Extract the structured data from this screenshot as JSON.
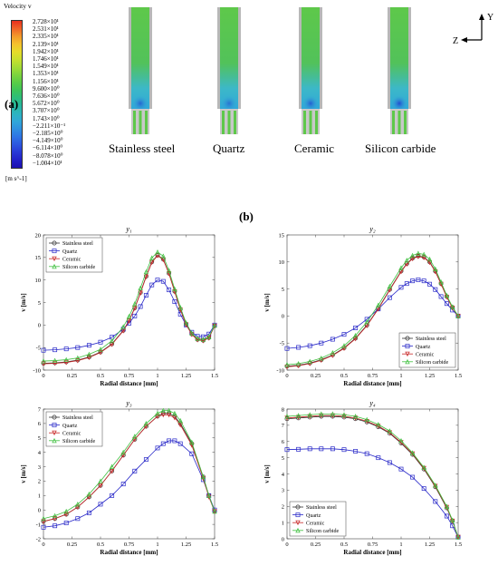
{
  "panel_a": {
    "label": "(a)",
    "legend_title": "Velocity v",
    "unit": "[m s^-1]",
    "colorbar_ticks": [
      "2.728×10¹",
      "2.531×10¹",
      "2.335×10¹",
      "2.139×10¹",
      "1.942×10¹",
      "1.746×10¹",
      "1.549×10¹",
      "1.353×10¹",
      "1.156×10¹",
      "9.600×10⁰",
      "7.636×10⁰",
      "5.672×10⁰",
      "3.707×10⁰",
      "1.743×10⁰",
      "−2.211×10⁻¹",
      "−2.185×10⁰",
      "−4.149×10⁰",
      "−6.114×10⁰",
      "−8.078×10⁰",
      "−1.004×10¹"
    ],
    "colorbar_colors": [
      "#e8301e",
      "#f06428",
      "#f39a2a",
      "#f5c12c",
      "#e6dc2a",
      "#c8e02e",
      "#a3dc36",
      "#7cd43e",
      "#58cc46",
      "#3cc45a",
      "#2cbd7c",
      "#28b8a0",
      "#2cb4c0",
      "#30a8d8",
      "#2f8fe0",
      "#2e74e4",
      "#2c56e0",
      "#2838d6",
      "#2220c8",
      "#1c10b0"
    ],
    "materials": [
      "Stainless steel",
      "Quartz",
      "Ceramic",
      "Silicon carbide"
    ],
    "axis_y": "Y",
    "axis_z": "Z"
  },
  "panel_b": {
    "label": "(b)"
  },
  "colors": {
    "Stainless steel": "#333333",
    "Quartz": "#2828c8",
    "Ceramic": "#c82828",
    "Silicon carbide": "#40c040"
  },
  "chart_data": [
    {
      "type": "line",
      "title": "y₁",
      "xlabel": "Radial distance [mm]",
      "ylabel": "v [m/s]",
      "xlim": [
        0,
        1.5
      ],
      "ylim": [
        -10,
        20
      ],
      "xticks": [
        0,
        0.25,
        0.5,
        0.75,
        1,
        1.25,
        1.5
      ],
      "yticks": [
        -10,
        -5,
        0,
        5,
        10,
        15,
        20
      ],
      "legend": "top-left",
      "x": [
        0,
        0.1,
        0.2,
        0.3,
        0.4,
        0.5,
        0.6,
        0.7,
        0.75,
        0.8,
        0.85,
        0.9,
        0.95,
        1.0,
        1.05,
        1.1,
        1.15,
        1.2,
        1.25,
        1.3,
        1.35,
        1.4,
        1.45,
        1.5
      ],
      "series": [
        {
          "name": "Stainless steel",
          "values": [
            -8.5,
            -8.4,
            -8.2,
            -7.8,
            -7.1,
            -6.0,
            -4.2,
            -1.2,
            1.0,
            3.8,
            7.2,
            10.8,
            14.0,
            15.5,
            14.6,
            11.5,
            7.5,
            3.5,
            0.2,
            -2.0,
            -3.2,
            -3.4,
            -2.8,
            -0.2
          ]
        },
        {
          "name": "Quartz",
          "values": [
            -5.6,
            -5.5,
            -5.3,
            -5.0,
            -4.5,
            -3.8,
            -2.7,
            -0.9,
            0.4,
            2.0,
            4.1,
            6.6,
            8.9,
            10.0,
            9.7,
            7.8,
            5.2,
            2.4,
            0.0,
            -1.6,
            -2.5,
            -2.6,
            -2.0,
            0.0
          ]
        },
        {
          "name": "Ceramic",
          "values": [
            -8.6,
            -8.5,
            -8.3,
            -7.9,
            -7.2,
            -6.1,
            -4.3,
            -1.3,
            0.9,
            3.7,
            7.1,
            10.7,
            13.9,
            15.4,
            14.5,
            11.4,
            7.4,
            3.4,
            0.1,
            -2.1,
            -3.3,
            -3.5,
            -2.9,
            -0.2
          ]
        },
        {
          "name": "Silicon carbide",
          "values": [
            -8.0,
            -7.9,
            -7.7,
            -7.3,
            -6.5,
            -5.4,
            -3.5,
            -0.4,
            1.9,
            4.7,
            8.2,
            11.8,
            14.9,
            16.2,
            15.3,
            12.1,
            8.0,
            3.9,
            0.5,
            -1.8,
            -3.0,
            -3.2,
            -2.6,
            -0.1
          ]
        }
      ]
    },
    {
      "type": "line",
      "title": "y₂",
      "xlabel": "Radial distance [mm]",
      "ylabel": "v [m/s]",
      "xlim": [
        0,
        1.5
      ],
      "ylim": [
        -10,
        15
      ],
      "xticks": [
        0,
        0.25,
        0.5,
        0.75,
        1,
        1.25,
        1.5
      ],
      "yticks": [
        -10,
        -5,
        0,
        5,
        10,
        15
      ],
      "legend": "bottom-right",
      "x": [
        0,
        0.1,
        0.2,
        0.3,
        0.4,
        0.5,
        0.6,
        0.7,
        0.8,
        0.9,
        1.0,
        1.05,
        1.1,
        1.15,
        1.2,
        1.25,
        1.3,
        1.35,
        1.4,
        1.45,
        1.5
      ],
      "series": [
        {
          "name": "Stainless steel",
          "values": [
            -9.3,
            -9.1,
            -8.7,
            -8.1,
            -7.2,
            -5.9,
            -4.1,
            -1.7,
            1.4,
            4.9,
            8.3,
            9.7,
            10.7,
            11.1,
            10.9,
            10.0,
            8.3,
            6.0,
            3.6,
            1.6,
            0.0
          ]
        },
        {
          "name": "Quartz",
          "values": [
            -6.0,
            -5.8,
            -5.5,
            -5.0,
            -4.3,
            -3.4,
            -2.2,
            -0.6,
            1.3,
            3.4,
            5.3,
            6.0,
            6.5,
            6.7,
            6.5,
            5.9,
            4.9,
            3.6,
            2.3,
            1.1,
            0.0
          ]
        },
        {
          "name": "Ceramic",
          "values": [
            -9.4,
            -9.2,
            -8.8,
            -8.2,
            -7.3,
            -6.0,
            -4.2,
            -1.8,
            1.3,
            4.8,
            8.2,
            9.6,
            10.6,
            11.0,
            10.8,
            9.9,
            8.2,
            5.9,
            3.5,
            1.5,
            0.0
          ]
        },
        {
          "name": "Silicon carbide",
          "values": [
            -9.0,
            -8.8,
            -8.4,
            -7.8,
            -6.8,
            -5.5,
            -3.6,
            -1.1,
            2.0,
            5.5,
            8.9,
            10.3,
            11.2,
            11.6,
            11.4,
            10.5,
            8.7,
            6.3,
            3.8,
            1.7,
            0.0
          ]
        }
      ]
    },
    {
      "type": "line",
      "title": "y₃",
      "xlabel": "Radial distance [mm]",
      "ylabel": "v [m/s]",
      "xlim": [
        0,
        1.5
      ],
      "ylim": [
        -2,
        7
      ],
      "xticks": [
        0,
        0.25,
        0.5,
        0.75,
        1,
        1.25,
        1.5
      ],
      "yticks": [
        -2,
        -1,
        0,
        1,
        2,
        3,
        4,
        5,
        6,
        7
      ],
      "legend": "top-left",
      "x": [
        0,
        0.1,
        0.2,
        0.3,
        0.4,
        0.5,
        0.6,
        0.7,
        0.8,
        0.9,
        1.0,
        1.05,
        1.1,
        1.15,
        1.2,
        1.3,
        1.4,
        1.45,
        1.5
      ],
      "series": [
        {
          "name": "Stainless steel",
          "values": [
            -0.8,
            -0.6,
            -0.3,
            0.2,
            0.9,
            1.7,
            2.7,
            3.8,
            4.9,
            5.8,
            6.5,
            6.7,
            6.7,
            6.5,
            6.0,
            4.6,
            2.3,
            1.0,
            -0.1
          ]
        },
        {
          "name": "Quartz",
          "values": [
            -1.2,
            -1.1,
            -0.9,
            -0.6,
            -0.2,
            0.4,
            1.0,
            1.8,
            2.7,
            3.5,
            4.3,
            4.6,
            4.8,
            4.8,
            4.6,
            3.9,
            2.1,
            1.0,
            0.0
          ]
        },
        {
          "name": "Ceramic",
          "values": [
            -0.8,
            -0.6,
            -0.3,
            0.2,
            0.9,
            1.7,
            2.7,
            3.8,
            4.9,
            5.8,
            6.5,
            6.6,
            6.6,
            6.4,
            5.9,
            4.5,
            2.2,
            0.9,
            -0.1
          ]
        },
        {
          "name": "Silicon carbide",
          "values": [
            -0.6,
            -0.4,
            -0.1,
            0.4,
            1.1,
            2.0,
            3.0,
            4.0,
            5.1,
            6.0,
            6.7,
            6.9,
            6.9,
            6.7,
            6.2,
            4.7,
            2.3,
            1.0,
            -0.1
          ]
        }
      ]
    },
    {
      "type": "line",
      "title": "y₄",
      "xlabel": "Radial distance [mm]",
      "ylabel": "v [m/s]",
      "xlim": [
        0,
        1.5
      ],
      "ylim": [
        0,
        8
      ],
      "xticks": [
        0,
        0.25,
        0.5,
        0.75,
        1,
        1.25,
        1.5
      ],
      "yticks": [
        0,
        1,
        2,
        3,
        4,
        5,
        6,
        7,
        8
      ],
      "legend": "bottom-left",
      "x": [
        0,
        0.1,
        0.2,
        0.3,
        0.4,
        0.5,
        0.6,
        0.7,
        0.8,
        0.9,
        1.0,
        1.1,
        1.2,
        1.3,
        1.4,
        1.45,
        1.5
      ],
      "series": [
        {
          "name": "Stainless steel",
          "values": [
            7.4,
            7.45,
            7.5,
            7.55,
            7.55,
            7.5,
            7.4,
            7.2,
            6.9,
            6.5,
            5.9,
            5.2,
            4.3,
            3.2,
            1.9,
            1.1,
            0.1
          ]
        },
        {
          "name": "Quartz",
          "values": [
            5.5,
            5.52,
            5.55,
            5.55,
            5.55,
            5.5,
            5.4,
            5.25,
            5.0,
            4.7,
            4.3,
            3.8,
            3.1,
            2.3,
            1.4,
            0.8,
            0.1
          ]
        },
        {
          "name": "Ceramic",
          "values": [
            7.45,
            7.5,
            7.55,
            7.6,
            7.6,
            7.55,
            7.45,
            7.25,
            6.95,
            6.55,
            5.95,
            5.25,
            4.35,
            3.25,
            1.95,
            1.1,
            0.1
          ]
        },
        {
          "name": "Silicon carbide",
          "values": [
            7.55,
            7.6,
            7.65,
            7.7,
            7.7,
            7.65,
            7.55,
            7.35,
            7.05,
            6.65,
            6.05,
            5.3,
            4.4,
            3.3,
            2.0,
            1.15,
            0.1
          ]
        }
      ]
    }
  ]
}
